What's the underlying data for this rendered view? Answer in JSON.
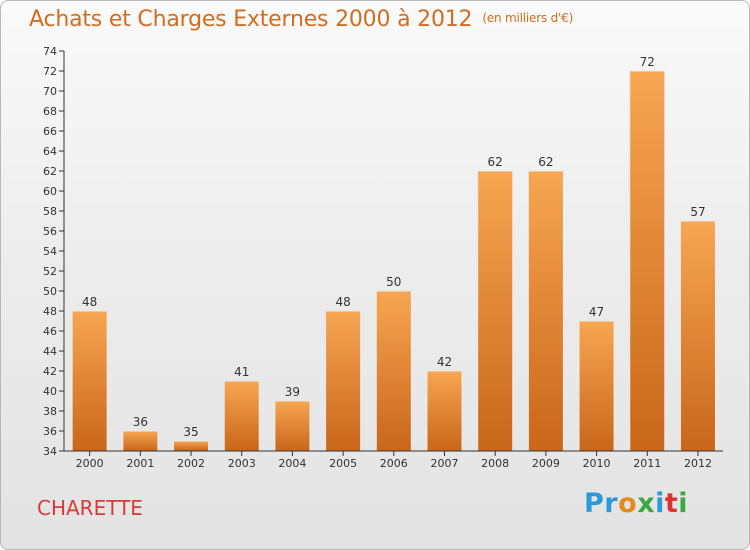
{
  "header": {
    "title": "Achats et Charges Externes 2000 à 2012",
    "subtitle": "(en milliers d'€)"
  },
  "footer": {
    "commune": "CHARETTE",
    "logo_letters": [
      {
        "ch": "P",
        "color": "#2a9ad8"
      },
      {
        "ch": "r",
        "color": "#2a9ad8"
      },
      {
        "ch": "o",
        "color": "#e8891f"
      },
      {
        "ch": "x",
        "color": "#3aa843"
      },
      {
        "ch": "i",
        "color": "#2a9ad8"
      },
      {
        "ch": "t",
        "color": "#e0312f"
      },
      {
        "ch": "i",
        "color": "#3aa843"
      }
    ]
  },
  "chart_data": {
    "type": "bar",
    "title": "Achats et Charges Externes 2000 à 2012",
    "subtitle": "(en milliers d'€)",
    "xlabel": "",
    "ylabel": "",
    "categories": [
      "2000",
      "2001",
      "2002",
      "2003",
      "2004",
      "2005",
      "2006",
      "2007",
      "2008",
      "2009",
      "2010",
      "2011",
      "2012"
    ],
    "values": [
      48,
      36,
      35,
      41,
      39,
      48,
      50,
      42,
      62,
      62,
      47,
      72,
      57
    ],
    "ylim": [
      34,
      74
    ],
    "ytick_step": 2,
    "grid": false,
    "legend": "none",
    "bar_color_top": "#f7a652",
    "bar_color_bottom": "#c9661a"
  }
}
